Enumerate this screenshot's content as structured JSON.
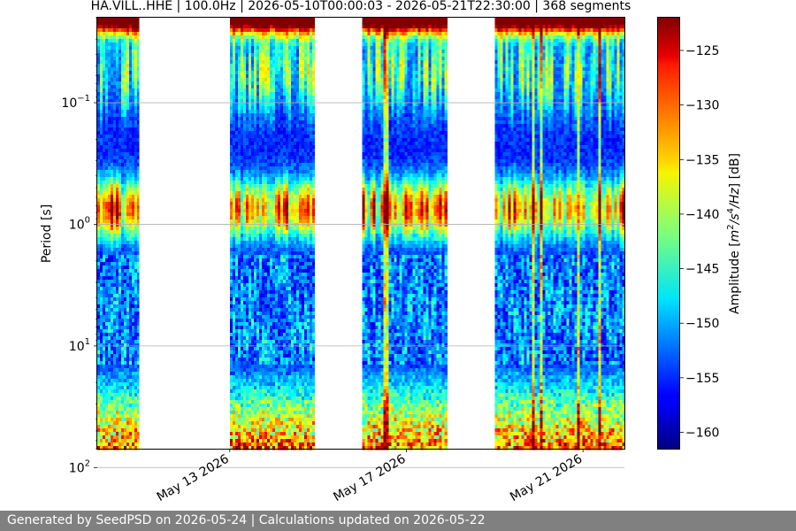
{
  "chart_data": {
    "type": "heatmap",
    "title": "HA.VILL..HHE | 100.0Hz | 2026-05-10T00:00:03 - 2026-05-21T22:30:00 | 368 segments",
    "ylabel": "Period [s]",
    "y_scale": "log",
    "y_inverted": true,
    "ylim": [
      0.02,
      70
    ],
    "y_ticks": [
      {
        "value": 0.1,
        "base": "10",
        "exp": "−1"
      },
      {
        "value": 1,
        "base": "10",
        "exp": "0"
      },
      {
        "value": 10,
        "base": "10",
        "exp": "1"
      },
      {
        "value": 100,
        "base": "10",
        "exp": "2"
      }
    ],
    "xlim": [
      "2026-05-10T00:00:03",
      "2026-05-21T22:30:00"
    ],
    "x_ticks": [
      {
        "date": "2026-05-13",
        "label": "May 13 2026"
      },
      {
        "date": "2026-05-17",
        "label": "May 17 2026"
      },
      {
        "date": "2026-05-21",
        "label": "May 21 2026"
      }
    ],
    "data_segments": [
      {
        "start": "2026-05-10T00:00:03",
        "end": "2026-05-10T22:30:00"
      },
      {
        "start": "2026-05-13T00:00:00",
        "end": "2026-05-14T22:00:00"
      },
      {
        "start": "2026-05-16T00:00:00",
        "end": "2026-05-17T22:00:00"
      },
      {
        "start": "2026-05-19T00:00:00",
        "end": "2026-05-21T22:30:00"
      }
    ],
    "grid": "horizontal",
    "colormap": "jet",
    "colorbar": {
      "label": "Amplitude [m²/s⁴/Hz] [dB]",
      "label_parts": {
        "prefix": "Amplitude [",
        "m": "m",
        "exp2": "2",
        "s": "/s",
        "exp4": "4",
        "hz": "/Hz",
        "suffix": "] [dB]"
      },
      "range": [
        -161.5,
        -122
      ],
      "ticks": [
        -125,
        -130,
        -135,
        -140,
        -145,
        -150,
        -155,
        -160
      ],
      "tick_labels": [
        "−125",
        "−130",
        "−135",
        "−140",
        "−145",
        "−150",
        "−155",
        "−160"
      ]
    },
    "colors": {
      "grid": "#b0b0b0",
      "axes": "#000000",
      "gap": "#ffffff"
    }
  },
  "footer": {
    "text": "Generated by SeedPSD on 2026-05-24 | Calculations updated on 2026-05-22",
    "background": "#808080"
  }
}
